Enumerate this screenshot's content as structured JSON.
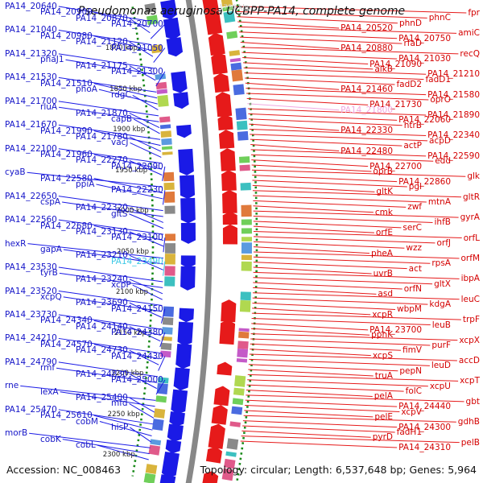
{
  "title": "Pseudomonas aeruginosa UCBPP-PA14, complete genome",
  "accession_text": "Accession: NC_008463",
  "summary_text": "Topology: circular; Length: 6,537,648 bp; Genes: 5,964",
  "colors": {
    "forward": "#1a1ae6",
    "reverse": "#e61a1a",
    "backbone": "#888888",
    "ticks": "#1a8a1a",
    "highlight": "#3cc8e6",
    "highlight_pink": "#f0a8e0"
  },
  "top_partial_label": "1750 kbp",
  "kbp_marks": [
    "1800 kbp",
    "1850 kbp",
    "1900 kbp",
    "1950 kbp",
    "2000 kbp",
    "2050 kbp",
    "2100 kbp",
    "2150 kbp",
    "2200 kbp",
    "2250 kbp",
    "2300 kbp"
  ],
  "left_labels": [
    "PA14_20640",
    "PA14_20900",
    "PA14_20870",
    "PA14_20700",
    "PA14_21040",
    "PA14_20980",
    "PA14_21120",
    "PA14_21050",
    "PA14_21320",
    "phaJ1",
    "PA14_21175",
    "PA14_21300",
    "PA14_21530",
    "PA14_21510",
    "phoA",
    "rdgC",
    "PA14_21700",
    "rluA",
    "PA14_21870",
    "capB",
    "PA14_21670",
    "PA14_21990",
    "PA14_21780",
    "vacJ",
    "PA14_22100",
    "PA14_21960",
    "PA14_22270",
    "PA14_22090",
    "cyaB",
    "PA14_22580",
    "ppiA",
    "PA14_22230",
    "PA14_22650",
    "cspA",
    "PA14_22320",
    "gltS",
    "PA14_22560",
    "PA14_22680",
    "PA14_23130",
    "PA14_23100",
    "hexR",
    "gapA",
    "PA14_23210",
    "PA14_23490",
    "PA14_23530",
    "tyrB",
    "PA14_23240",
    "xcpP",
    "PA14_23520",
    "xcpQ",
    "PA14_23690",
    "PA14_24150",
    "PA14_23730",
    "PA14_24340",
    "PA14_24140",
    "PA14_24380",
    "PA14_24210",
    "PA14_24570",
    "PA14_24730",
    "PA14_24430",
    "PA14_24790",
    "rmf",
    "PA14_24830",
    "PA14_25000",
    "rne",
    "lexA",
    "PA14_25400",
    "mfd",
    "PA14_25470",
    "PA14_25610",
    "cobM",
    "hisP",
    "morB",
    "cobK",
    "cobL"
  ],
  "right_labels": [
    "fpr",
    "phnC",
    "phnD",
    "PA14_20520",
    "amiC",
    "PA14_20750",
    "rfaD",
    "PA14_20880",
    "recQ",
    "PA14_21030",
    "PA14_21090",
    "alkB",
    "PA14_21210",
    "fadD1",
    "fadD2",
    "PA14_21460",
    "PA14_21580",
    "oprO",
    "PA14_21730",
    "PA14_21800",
    "PA14_21890",
    "PA14_22060",
    "htrB",
    "PA14_22330",
    "PA14_22340",
    "acpD",
    "actP",
    "PA14_22480",
    "PA14_22590",
    "edd",
    "PA14_22700",
    "oprB",
    "glk",
    "PA14_22860",
    "pgl",
    "gltK",
    "gltR",
    "mtnA",
    "zwf",
    "cmk",
    "gyrA",
    "ihfB",
    "serC",
    "orfE",
    "orfL",
    "orfJ",
    "wzz",
    "pheA",
    "orfM",
    "rpsA",
    "act",
    "uvrB",
    "ibpA",
    "gltX",
    "orfN",
    "asd",
    "leuC",
    "kdgA",
    "wbpM",
    "xcpR",
    "trpF",
    "leuB",
    "PA14_23700",
    "ppnK",
    "xcpX",
    "purF",
    "fimV",
    "xcpS",
    "accD",
    "leuD",
    "pepN",
    "truA",
    "xcpT",
    "xcpU",
    "folC",
    "pelA",
    "gbt",
    "PA14_24440",
    "xcpV",
    "pelE",
    "gdhB",
    "PA14_24300",
    "fadH1",
    "pyrD",
    "pelB",
    "PA14_24310"
  ]
}
